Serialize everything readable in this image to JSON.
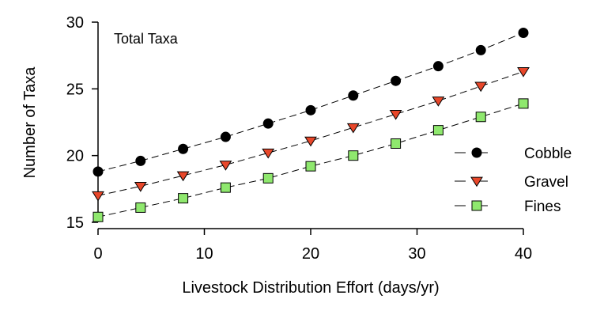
{
  "chart_data": {
    "type": "line",
    "title": "",
    "annotation": "Total Taxa",
    "xlabel": "Livestock Distribution Effort (days/yr)",
    "ylabel": "Number of Taxa",
    "xlim": [
      0,
      40
    ],
    "ylim": [
      15,
      30
    ],
    "xticks": [
      0,
      10,
      20,
      30,
      40
    ],
    "yticks": [
      15,
      20,
      25,
      30
    ],
    "grid": false,
    "legend_position": "right",
    "x": [
      0,
      4,
      8,
      12,
      16,
      20,
      24,
      28,
      32,
      36,
      40
    ],
    "series": [
      {
        "name": "Cobble",
        "marker": "circle",
        "color": "#000000",
        "values": [
          18.8,
          19.6,
          20.5,
          21.4,
          22.4,
          23.4,
          24.5,
          25.6,
          26.7,
          27.9,
          29.2
        ]
      },
      {
        "name": "Gravel",
        "marker": "triangle-down",
        "color": "#e8472a",
        "values": [
          17.0,
          17.7,
          18.5,
          19.3,
          20.2,
          21.1,
          22.1,
          23.1,
          24.1,
          25.2,
          26.3
        ]
      },
      {
        "name": "Fines",
        "marker": "square",
        "color": "#8fe86e",
        "values": [
          15.4,
          16.1,
          16.8,
          17.6,
          18.3,
          19.2,
          20.0,
          20.9,
          21.9,
          22.9,
          23.9
        ]
      }
    ]
  }
}
